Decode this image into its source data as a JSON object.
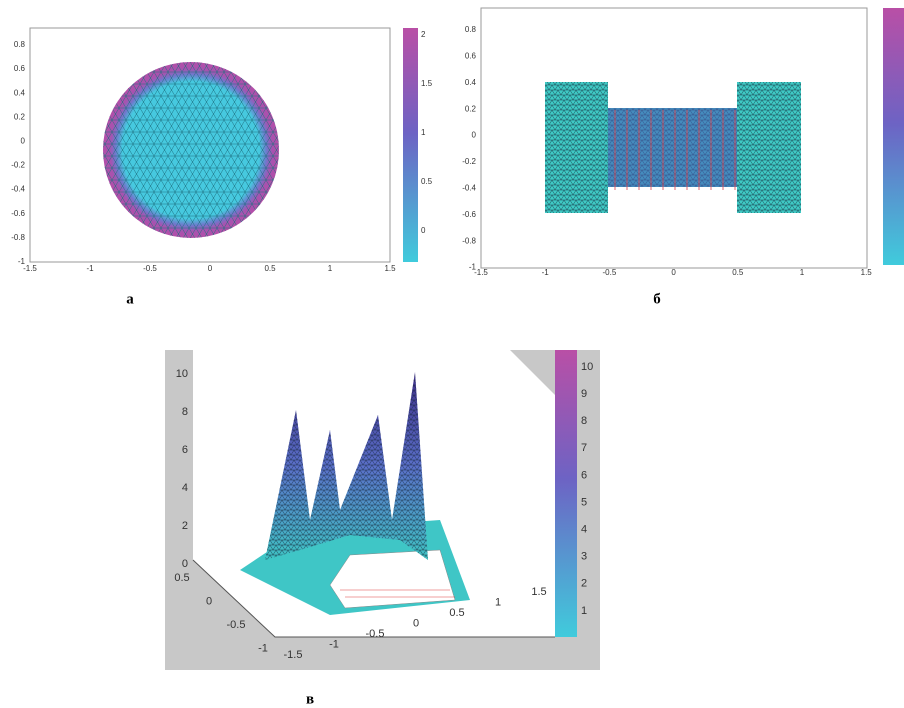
{
  "panels": [
    {
      "label": "а",
      "xticks": [
        "-1.5",
        "-1",
        "-0.5",
        "0",
        "0.5",
        "1",
        "1.5"
      ],
      "yticks": [
        "0.8",
        "0.6",
        "0.4",
        "0.2",
        "0",
        "-0.2",
        "-0.4",
        "-0.6",
        "-0.8",
        "-1"
      ],
      "colorbar_ticks": [
        "2",
        "1.5",
        "1",
        "0.5",
        "0"
      ]
    },
    {
      "label": "б",
      "xticks": [
        "-1.5",
        "-1",
        "-0.5",
        "0",
        "0.5",
        "1",
        "1.5"
      ],
      "yticks": [
        "0.8",
        "0.6",
        "0.4",
        "0.2",
        "0",
        "-0.2",
        "-0.4",
        "-0.6",
        "-0.8",
        "-1"
      ]
    },
    {
      "label": "в",
      "zticks": [
        "10",
        "8",
        "6",
        "4",
        "2",
        "0"
      ],
      "yticks": [
        "0.5",
        "0",
        "-0.5",
        "-1"
      ],
      "xticks": [
        "-1.5",
        "-1",
        "-0.5",
        "0",
        "0.5",
        "1",
        "1.5"
      ],
      "colorbar_ticks": [
        "10",
        "9",
        "8",
        "7",
        "6",
        "5",
        "4",
        "3",
        "2",
        "1"
      ]
    }
  ]
}
